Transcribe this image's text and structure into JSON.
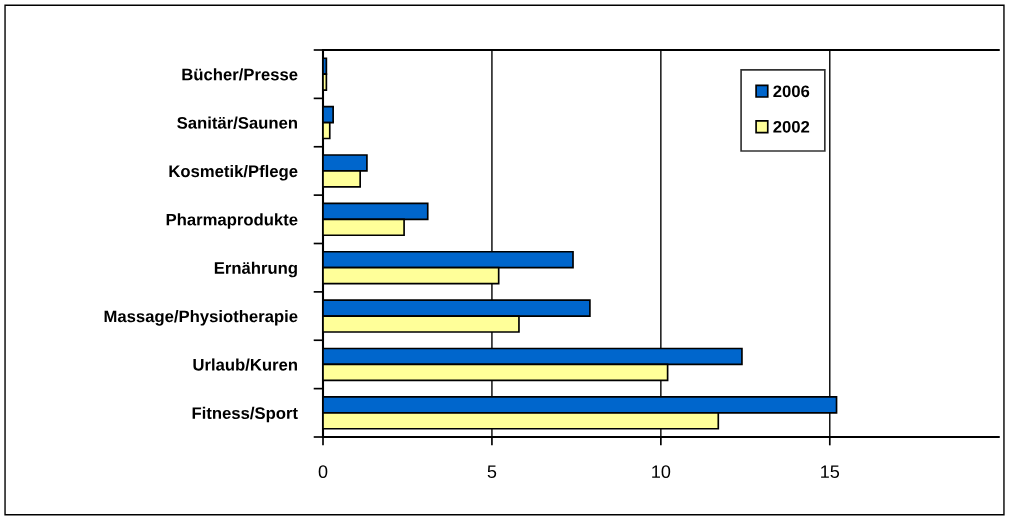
{
  "chart_data": {
    "type": "bar",
    "orientation": "horizontal",
    "categories": [
      "Bücher/Presse",
      "Sanitär/Saunen",
      "Kosmetik/Pflege",
      "Pharmaprodukte",
      "Ernährung",
      "Massage/Physiotherapie",
      "Urlaub/Kuren",
      "Fitness/Sport"
    ],
    "series": [
      {
        "name": "2006",
        "color": "#0066cc",
        "values": [
          0.1,
          0.3,
          1.3,
          3.1,
          7.4,
          7.9,
          12.4,
          15.2
        ]
      },
      {
        "name": "2002",
        "color": "#ffff99",
        "values": [
          0.1,
          0.2,
          1.1,
          2.4,
          5.2,
          5.8,
          10.2,
          11.7
        ]
      }
    ],
    "xlim": [
      0,
      20
    ],
    "xticks": [
      0,
      5,
      10,
      15
    ],
    "grid": "x",
    "legend": "top right"
  }
}
